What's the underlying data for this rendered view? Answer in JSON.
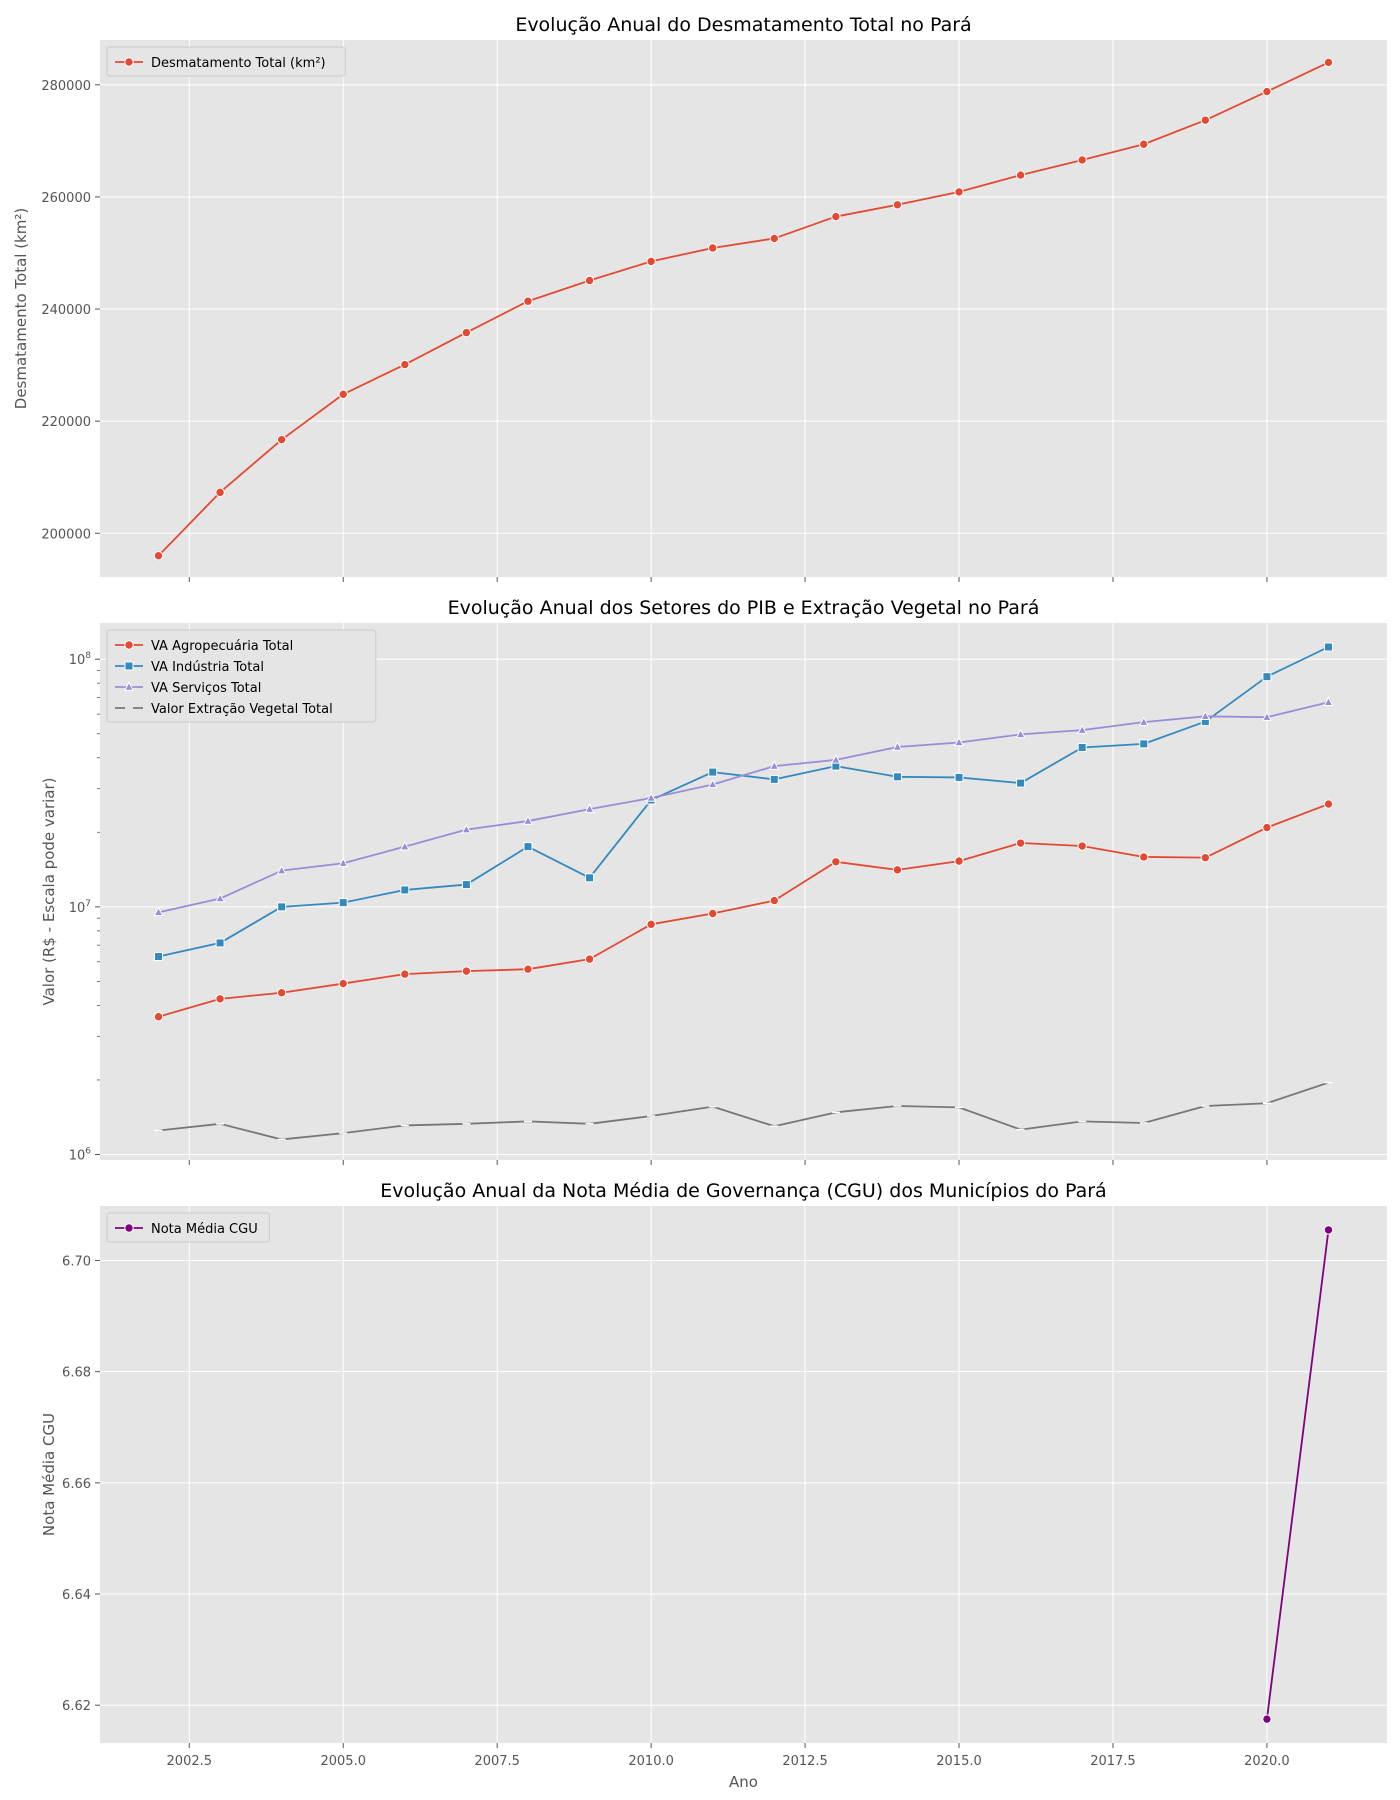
{
  "chart_data": [
    {
      "type": "line",
      "title": "Evolução Anual do Desmatamento Total no Pará",
      "xlabel": "",
      "ylabel": "Desmatamento Total (km²)",
      "x": [
        2002,
        2003,
        2004,
        2005,
        2006,
        2007,
        2008,
        2009,
        2010,
        2011,
        2012,
        2013,
        2014,
        2015,
        2016,
        2017,
        2018,
        2019,
        2020,
        2021
      ],
      "xlim": [
        2001.05,
        2021.95
      ],
      "ylim": [
        192200,
        288000
      ],
      "yscale": "linear",
      "x_ticks": [
        2002.5,
        2005.0,
        2007.5,
        2010.0,
        2012.5,
        2015.0,
        2017.5,
        2020.0
      ],
      "x_tick_labels": [],
      "y_ticks": [
        200000,
        220000,
        240000,
        260000,
        280000
      ],
      "y_tick_labels": [
        "200000",
        "220000",
        "240000",
        "260000",
        "280000"
      ],
      "grid": true,
      "legend_position": "top-left",
      "series": [
        {
          "name": "Desmatamento Total (km²)",
          "color": "#E24A33",
          "marker": "circle",
          "values": [
            196000,
            207300,
            216700,
            224800,
            230100,
            235800,
            241400,
            245100,
            248500,
            250900,
            252600,
            256500,
            258600,
            260900,
            263900,
            266600,
            269400,
            273700,
            278800,
            284000
          ]
        }
      ]
    },
    {
      "type": "line",
      "title": "Evolução Anual dos Setores do PIB e Extração Vegetal no Pará",
      "xlabel": "",
      "ylabel": "Valor (R$ - Escala pode variar)",
      "x": [
        2002,
        2003,
        2004,
        2005,
        2006,
        2007,
        2008,
        2009,
        2010,
        2011,
        2012,
        2013,
        2014,
        2015,
        2016,
        2017,
        2018,
        2019,
        2020,
        2021
      ],
      "xlim": [
        2001.05,
        2021.95
      ],
      "ylim": [
        950000,
        140000000
      ],
      "yscale": "log",
      "x_ticks": [
        2002.5,
        2005.0,
        2007.5,
        2010.0,
        2012.5,
        2015.0,
        2017.5,
        2020.0
      ],
      "x_tick_labels": [],
      "y_ticks": [
        1000000,
        10000000,
        100000000
      ],
      "y_tick_labels": [
        "10⁶",
        "10⁷",
        "10⁸"
      ],
      "grid": true,
      "legend_position": "top-left",
      "series": [
        {
          "name": "VA Agropecuária Total",
          "color": "#E24A33",
          "marker": "circle",
          "values": [
            3600000,
            4250000,
            4500000,
            4900000,
            5350000,
            5500000,
            5600000,
            6150000,
            8500000,
            9400000,
            10600000,
            15200000,
            14100000,
            15300000,
            18100000,
            17600000,
            15900000,
            15800000,
            20900000,
            26000000
          ]
        },
        {
          "name": "VA Indústria Total",
          "color": "#348ABD",
          "marker": "square",
          "values": [
            6300000,
            7150000,
            10000000,
            10400000,
            11700000,
            12300000,
            17500000,
            13100000,
            27000000,
            35000000,
            32700000,
            37000000,
            33500000,
            33300000,
            31600000,
            44000000,
            45500000,
            56000000,
            85000000,
            112000000
          ]
        },
        {
          "name": "VA Serviços Total",
          "color": "#988ED5",
          "marker": "triangle",
          "values": [
            9500000,
            10800000,
            14000000,
            15000000,
            17500000,
            20500000,
            22200000,
            24800000,
            27500000,
            31200000,
            37000000,
            39200000,
            44200000,
            46100000,
            49700000,
            51700000,
            55700000,
            58800000,
            58300000,
            67000000
          ]
        },
        {
          "name": "Valor Extração Vegetal Total",
          "color": "#777777",
          "marker": "line",
          "values": [
            1250000,
            1330000,
            1150000,
            1220000,
            1310000,
            1330000,
            1360000,
            1330000,
            1430000,
            1560000,
            1300000,
            1480000,
            1570000,
            1550000,
            1260000,
            1360000,
            1340000,
            1570000,
            1610000,
            1950000
          ]
        }
      ]
    },
    {
      "type": "line",
      "title": "Evolução Anual da Nota Média de Governança (CGU) dos Municípios do Pará",
      "xlabel": "Ano",
      "ylabel": "Nota Média CGU",
      "x": [
        2020,
        2021
      ],
      "xlim": [
        2001.05,
        2021.95
      ],
      "ylim": [
        6.6132,
        6.7098
      ],
      "yscale": "linear",
      "x_ticks": [
        2002.5,
        2005.0,
        2007.5,
        2010.0,
        2012.5,
        2015.0,
        2017.5,
        2020.0
      ],
      "x_tick_labels": [
        "2002.5",
        "2005.0",
        "2007.5",
        "2010.0",
        "2012.5",
        "2015.0",
        "2017.5",
        "2020.0"
      ],
      "y_ticks": [
        6.62,
        6.64,
        6.66,
        6.68,
        6.7
      ],
      "y_tick_labels": [
        "6.62",
        "6.64",
        "6.66",
        "6.68",
        "6.70"
      ],
      "grid": true,
      "legend_position": "top-left",
      "series": [
        {
          "name": "Nota Média CGU",
          "color": "#800080",
          "marker": "circle",
          "values": [
            6.6175,
            6.7055
          ]
        }
      ]
    }
  ]
}
